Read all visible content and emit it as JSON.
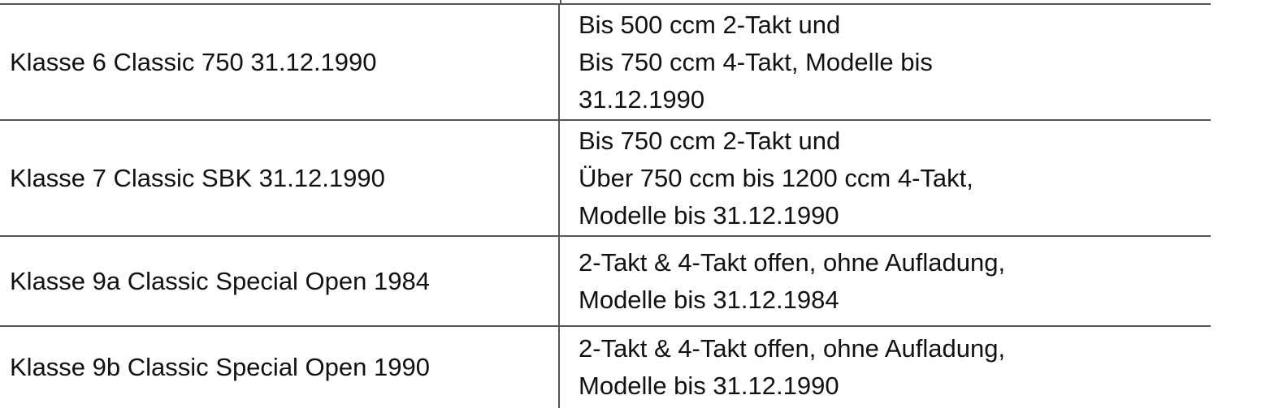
{
  "table": {
    "rows": [
      {
        "klasse": "Klasse 6 Classic 750 31.12.1990",
        "beschreibung": [
          "Bis 500 ccm 2-Takt und",
          "Bis 750 ccm 4-Takt, Modelle bis",
          "31.12.1990"
        ]
      },
      {
        "klasse": "Klasse 7 Classic SBK 31.12.1990",
        "beschreibung": [
          "Bis 750 ccm 2-Takt und",
          "Über 750 ccm bis 1200 ccm 4-Takt,",
          "Modelle bis 31.12.1990"
        ]
      },
      {
        "klasse": "Klasse 9a Classic Special Open 1984",
        "beschreibung": [
          "2-Takt & 4-Takt offen, ohne Aufladung,",
          "Modelle bis 31.12.1984"
        ]
      },
      {
        "klasse": "Klasse 9b Classic Special Open 1990",
        "beschreibung": [
          "2-Takt & 4-Takt offen, ohne Aufladung,",
          "Modelle bis 31.12.1990"
        ]
      }
    ]
  }
}
